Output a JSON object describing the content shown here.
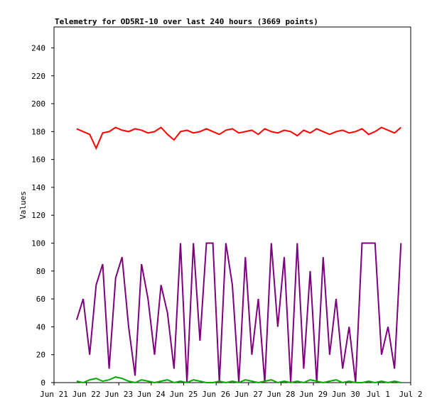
{
  "chart_data": {
    "type": "line",
    "title": "Telemetry for OD5RI-10 over last 240 hours (3669 points)",
    "y_label": "Values",
    "x": [
      0.7,
      0.9,
      1.1,
      1.3,
      1.5,
      1.7,
      1.9,
      2.1,
      2.3,
      2.5,
      2.7,
      2.9,
      3.1,
      3.3,
      3.5,
      3.7,
      3.9,
      4.1,
      4.3,
      4.5,
      4.7,
      4.9,
      5.1,
      5.3,
      5.5,
      5.7,
      5.9,
      6.1,
      6.3,
      6.5,
      6.7,
      6.9,
      7.1,
      7.3,
      7.5,
      7.7,
      7.9,
      8.1,
      8.3,
      8.5,
      8.7,
      8.9,
      9.1,
      9.3,
      9.5,
      9.7,
      9.9,
      10.1,
      10.3,
      10.5,
      10.7
    ],
    "series": [
      {
        "name": "red",
        "color": "#ff0000",
        "values": [
          182,
          180,
          178,
          168,
          179,
          180,
          183,
          181,
          180,
          182,
          181,
          179,
          180,
          183,
          178,
          174,
          180,
          181,
          179,
          180,
          182,
          180,
          178,
          181,
          182,
          179,
          180,
          181,
          178,
          182,
          180,
          179,
          181,
          180,
          177,
          181,
          179,
          182,
          180,
          178,
          180,
          181,
          179,
          180,
          182,
          178,
          180,
          183,
          181,
          179,
          183
        ]
      },
      {
        "name": "purple",
        "color": "#7f007f",
        "values": [
          45,
          60,
          20,
          70,
          85,
          10,
          75,
          90,
          40,
          5,
          85,
          60,
          20,
          70,
          50,
          10,
          100,
          0,
          100,
          30,
          100,
          100,
          0,
          100,
          70,
          0,
          90,
          20,
          60,
          0,
          100,
          40,
          90,
          0,
          100,
          10,
          80,
          0,
          90,
          20,
          60,
          10,
          40,
          0,
          100,
          100,
          100,
          20,
          40,
          10,
          100
        ]
      },
      {
        "name": "green",
        "color": "#00aa00",
        "values": [
          1,
          0,
          2,
          3,
          1,
          2,
          4,
          3,
          1,
          0,
          2,
          1,
          0,
          1,
          2,
          0,
          1,
          0,
          2,
          1,
          0,
          0,
          1,
          0,
          1,
          0,
          2,
          1,
          0,
          1,
          2,
          0,
          1,
          0,
          1,
          0,
          2,
          1,
          0,
          1,
          2,
          0,
          1,
          0,
          0,
          1,
          0,
          1,
          0,
          1,
          0
        ]
      }
    ],
    "xlim": [
      0,
      11
    ],
    "xticks": [
      {
        "value": 0,
        "label": "Jun 21"
      },
      {
        "value": 1,
        "label": "Jun 22"
      },
      {
        "value": 2,
        "label": "Jun 23"
      },
      {
        "value": 3,
        "label": "Jun 24"
      },
      {
        "value": 4,
        "label": "Jun 25"
      },
      {
        "value": 5,
        "label": "Jun 26"
      },
      {
        "value": 6,
        "label": "Jun 27"
      },
      {
        "value": 7,
        "label": "Jun 28"
      },
      {
        "value": 8,
        "label": "Jun 29"
      },
      {
        "value": 9,
        "label": "Jun 30"
      },
      {
        "value": 10,
        "label": "Jul 1"
      },
      {
        "value": 11,
        "label": "Jul 2"
      }
    ],
    "ylim": [
      0,
      255
    ],
    "yticks": [
      0,
      20,
      40,
      60,
      80,
      100,
      120,
      140,
      160,
      180,
      200,
      220,
      240
    ]
  }
}
